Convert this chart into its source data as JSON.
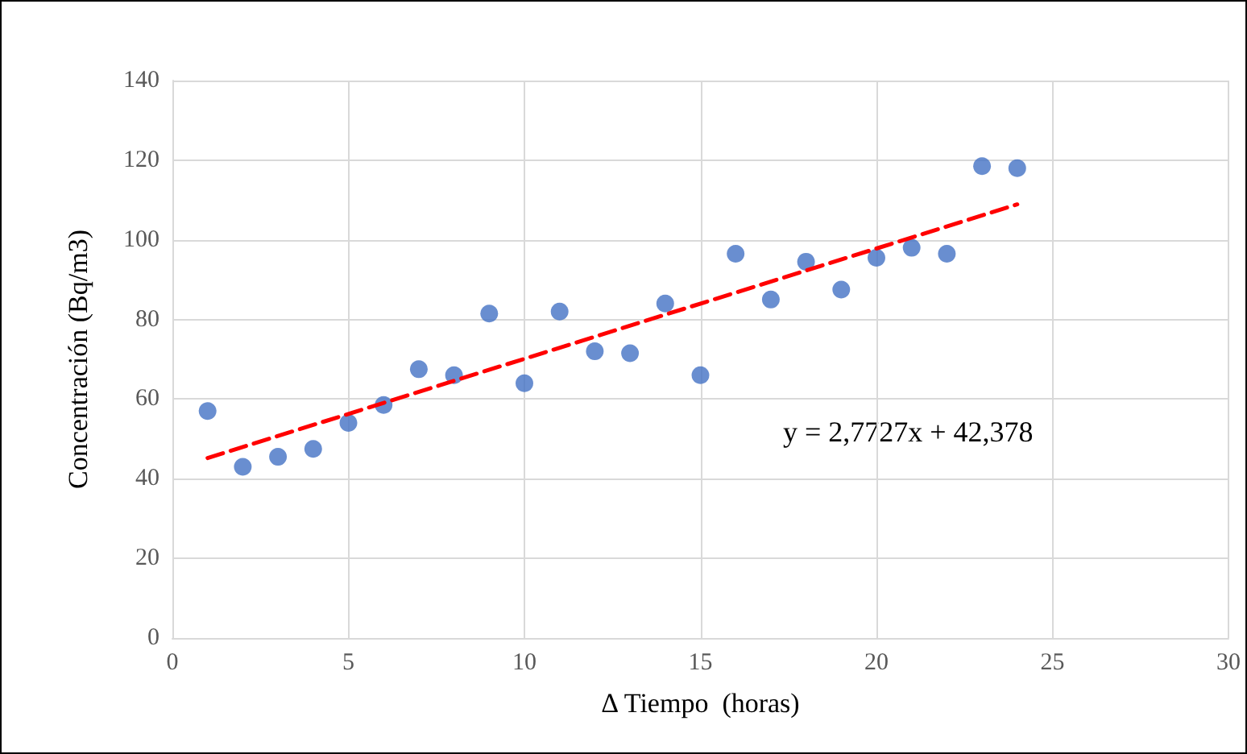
{
  "chart_data": {
    "type": "scatter",
    "xlabel": "Δ Tiempo  (horas)",
    "ylabel": "Concentración (Bq/m3)",
    "xlim": [
      0,
      30
    ],
    "xticks": [
      0,
      5,
      10,
      15,
      20,
      25,
      30
    ],
    "ylim": [
      0,
      140
    ],
    "yticks": [
      0,
      20,
      40,
      60,
      80,
      100,
      120,
      140
    ],
    "grid": true,
    "series": [
      {
        "marker": "circle",
        "color": "#4472c4",
        "x": [
          1,
          2,
          3,
          4,
          5,
          6,
          7,
          8,
          9,
          10,
          11,
          12,
          13,
          14,
          15,
          16,
          17,
          18,
          19,
          20,
          21,
          22,
          23,
          24
        ],
        "values": [
          57,
          43,
          45.5,
          47.5,
          54,
          58.5,
          67.5,
          66,
          81.5,
          64,
          82,
          72,
          71.5,
          84,
          66,
          96.5,
          85,
          94.5,
          87.5,
          95.5,
          98,
          96.5,
          118.5,
          118
        ]
      },
      {
        "type": "line",
        "marker": "none",
        "line_style": "dashed",
        "color": "#ff0000",
        "x": [
          1,
          24
        ],
        "values": [
          45.2,
          108.9
        ]
      }
    ],
    "annotations": [
      "y = 2,7727x + 42,378"
    ]
  }
}
